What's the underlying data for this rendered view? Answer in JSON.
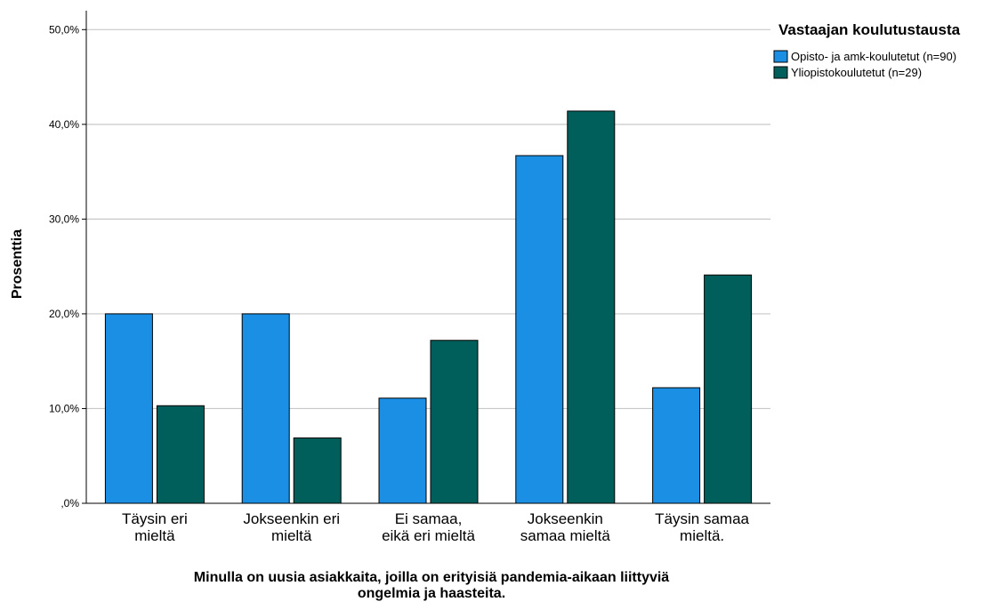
{
  "chart_data": {
    "type": "bar",
    "categories": [
      [
        "Täysin eri",
        "mieltä"
      ],
      [
        "Jokseenkin eri",
        "mieltä"
      ],
      [
        "Ei samaa,",
        "eikä eri mieltä"
      ],
      [
        "Jokseenkin",
        "samaa mieltä"
      ],
      [
        "Täysin samaa",
        "mieltä."
      ]
    ],
    "series": [
      {
        "name": "Opisto- ja amk-koulutetut (n=90)",
        "color": "#1a8fe3",
        "values": [
          20.0,
          20.0,
          11.1,
          36.7,
          12.2
        ]
      },
      {
        "name": "Yliopistokoulutetut (n=29)",
        "color": "#015f5b",
        "values": [
          10.3,
          6.9,
          17.2,
          41.4,
          24.1
        ]
      }
    ],
    "ylabel": "Prosenttia",
    "xlabel_lines": [
      "Minulla on uusia asiakkaita, joilla on erityisiä pandemia-aikaan liittyviä",
      "ongelmia ja haasteita."
    ],
    "ylim": [
      0,
      52
    ],
    "yticks": [
      0,
      10,
      20,
      30,
      40,
      50
    ],
    "ytick_labels": [
      ",0%",
      "10,0%",
      "20,0%",
      "30,0%",
      "40,0%",
      "50,0%"
    ],
    "legend_title": "Vastaajan koulutustausta",
    "legend_position": "top-right",
    "grid": true
  }
}
